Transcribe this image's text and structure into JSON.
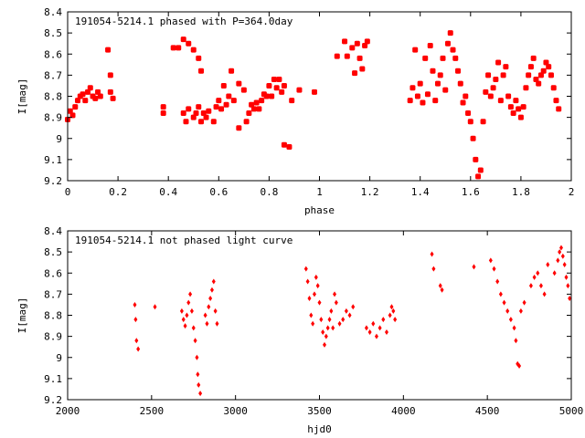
{
  "chart_data": [
    {
      "type": "scatter",
      "title": "191054-5214.1 phased with P=364.0day",
      "xlabel": "phase",
      "ylabel": "I[mag]",
      "xlim": [
        0,
        2
      ],
      "ylim": [
        9.2,
        8.4
      ],
      "y_inverted": true,
      "x_ticks": [
        "0",
        "0.2",
        "0.4",
        "0.6",
        "0.8",
        "1",
        "1.2",
        "1.4",
        "1.6",
        "1.8",
        "2"
      ],
      "y_ticks": [
        "8.4",
        "8.5",
        "8.6",
        "8.7",
        "8.8",
        "8.9",
        "9",
        "9.1",
        "9.2"
      ],
      "marker": "filled-star",
      "color": "#ff0000",
      "grid": false,
      "points": [
        [
          0.0,
          8.91
        ],
        [
          0.01,
          8.87
        ],
        [
          0.02,
          8.89
        ],
        [
          0.03,
          8.85
        ],
        [
          0.04,
          8.82
        ],
        [
          0.05,
          8.8
        ],
        [
          0.06,
          8.79
        ],
        [
          0.07,
          8.82
        ],
        [
          0.08,
          8.78
        ],
        [
          0.09,
          8.76
        ],
        [
          0.1,
          8.8
        ],
        [
          0.11,
          8.81
        ],
        [
          0.12,
          8.78
        ],
        [
          0.13,
          8.8
        ],
        [
          0.16,
          8.58
        ],
        [
          0.17,
          8.7
        ],
        [
          0.17,
          8.78
        ],
        [
          0.18,
          8.81
        ],
        [
          0.38,
          8.88
        ],
        [
          0.38,
          8.85
        ],
        [
          0.42,
          8.57
        ],
        [
          0.44,
          8.57
        ],
        [
          0.46,
          8.53
        ],
        [
          0.46,
          8.88
        ],
        [
          0.47,
          8.92
        ],
        [
          0.48,
          8.55
        ],
        [
          0.48,
          8.86
        ],
        [
          0.5,
          8.58
        ],
        [
          0.5,
          8.9
        ],
        [
          0.51,
          8.88
        ],
        [
          0.52,
          8.62
        ],
        [
          0.52,
          8.85
        ],
        [
          0.53,
          8.68
        ],
        [
          0.53,
          8.92
        ],
        [
          0.54,
          8.88
        ],
        [
          0.55,
          8.9
        ],
        [
          0.56,
          8.87
        ],
        [
          0.58,
          8.92
        ],
        [
          0.59,
          8.85
        ],
        [
          0.6,
          8.82
        ],
        [
          0.61,
          8.86
        ],
        [
          0.62,
          8.75
        ],
        [
          0.63,
          8.84
        ],
        [
          0.64,
          8.8
        ],
        [
          0.65,
          8.68
        ],
        [
          0.66,
          8.82
        ],
        [
          0.68,
          8.74
        ],
        [
          0.68,
          8.95
        ],
        [
          0.7,
          8.77
        ],
        [
          0.71,
          8.92
        ],
        [
          0.72,
          8.88
        ],
        [
          0.73,
          8.84
        ],
        [
          0.74,
          8.86
        ],
        [
          0.75,
          8.83
        ],
        [
          0.76,
          8.86
        ],
        [
          0.77,
          8.82
        ],
        [
          0.78,
          8.79
        ],
        [
          0.79,
          8.8
        ],
        [
          0.8,
          8.75
        ],
        [
          0.81,
          8.8
        ],
        [
          0.82,
          8.72
        ],
        [
          0.83,
          8.76
        ],
        [
          0.84,
          8.72
        ],
        [
          0.85,
          8.78
        ],
        [
          0.86,
          8.75
        ],
        [
          0.86,
          9.03
        ],
        [
          0.88,
          9.04
        ],
        [
          0.89,
          8.82
        ],
        [
          0.92,
          8.77
        ],
        [
          0.98,
          8.78
        ],
        [
          1.07,
          8.61
        ],
        [
          1.1,
          8.54
        ],
        [
          1.11,
          8.61
        ],
        [
          1.13,
          8.57
        ],
        [
          1.14,
          8.69
        ],
        [
          1.15,
          8.55
        ],
        [
          1.16,
          8.62
        ],
        [
          1.17,
          8.67
        ],
        [
          1.18,
          8.56
        ],
        [
          1.19,
          8.54
        ],
        [
          1.36,
          8.82
        ],
        [
          1.37,
          8.76
        ],
        [
          1.38,
          8.58
        ],
        [
          1.39,
          8.8
        ],
        [
          1.4,
          8.74
        ],
        [
          1.41,
          8.83
        ],
        [
          1.42,
          8.62
        ],
        [
          1.43,
          8.79
        ],
        [
          1.44,
          8.56
        ],
        [
          1.45,
          8.68
        ],
        [
          1.46,
          8.82
        ],
        [
          1.47,
          8.74
        ],
        [
          1.48,
          8.7
        ],
        [
          1.49,
          8.62
        ],
        [
          1.5,
          8.77
        ],
        [
          1.51,
          8.55
        ],
        [
          1.52,
          8.5
        ],
        [
          1.53,
          8.58
        ],
        [
          1.54,
          8.62
        ],
        [
          1.55,
          8.68
        ],
        [
          1.56,
          8.74
        ],
        [
          1.57,
          8.83
        ],
        [
          1.58,
          8.8
        ],
        [
          1.59,
          8.88
        ],
        [
          1.6,
          8.92
        ],
        [
          1.61,
          9.0
        ],
        [
          1.62,
          9.1
        ],
        [
          1.63,
          9.18
        ],
        [
          1.64,
          9.15
        ],
        [
          1.65,
          8.92
        ],
        [
          1.66,
          8.78
        ],
        [
          1.67,
          8.7
        ],
        [
          1.68,
          8.8
        ],
        [
          1.69,
          8.76
        ],
        [
          1.7,
          8.72
        ],
        [
          1.71,
          8.64
        ],
        [
          1.72,
          8.82
        ],
        [
          1.73,
          8.7
        ],
        [
          1.74,
          8.66
        ],
        [
          1.75,
          8.8
        ],
        [
          1.76,
          8.85
        ],
        [
          1.77,
          8.88
        ],
        [
          1.78,
          8.82
        ],
        [
          1.79,
          8.86
        ],
        [
          1.8,
          8.9
        ],
        [
          1.81,
          8.85
        ],
        [
          1.82,
          8.76
        ],
        [
          1.83,
          8.7
        ],
        [
          1.84,
          8.66
        ],
        [
          1.85,
          8.62
        ],
        [
          1.86,
          8.72
        ],
        [
          1.87,
          8.74
        ],
        [
          1.88,
          8.7
        ],
        [
          1.89,
          8.68
        ],
        [
          1.9,
          8.64
        ],
        [
          1.91,
          8.66
        ],
        [
          1.92,
          8.7
        ],
        [
          1.93,
          8.76
        ],
        [
          1.94,
          8.82
        ],
        [
          1.95,
          8.86
        ]
      ]
    },
    {
      "type": "scatter",
      "title": "191054-5214.1 not phased light curve",
      "xlabel": "hjd0",
      "ylabel": "I[mag]",
      "xlim": [
        2000,
        5000
      ],
      "ylim": [
        9.2,
        8.4
      ],
      "y_inverted": true,
      "x_ticks": [
        "2000",
        "2500",
        "3000",
        "3500",
        "4000",
        "4500",
        "5000"
      ],
      "y_ticks": [
        "8.4",
        "8.5",
        "8.6",
        "8.7",
        "8.8",
        "8.9",
        "9",
        "9.1",
        "9.2"
      ],
      "marker": "filled-diamond",
      "color": "#ff0000",
      "grid": false,
      "points": [
        [
          2400,
          8.75
        ],
        [
          2405,
          8.82
        ],
        [
          2410,
          8.92
        ],
        [
          2420,
          8.96
        ],
        [
          2520,
          8.76
        ],
        [
          2680,
          8.78
        ],
        [
          2690,
          8.82
        ],
        [
          2700,
          8.85
        ],
        [
          2710,
          8.8
        ],
        [
          2720,
          8.74
        ],
        [
          2730,
          8.7
        ],
        [
          2740,
          8.78
        ],
        [
          2750,
          8.86
        ],
        [
          2760,
          8.92
        ],
        [
          2770,
          9.0
        ],
        [
          2775,
          9.08
        ],
        [
          2780,
          9.13
        ],
        [
          2790,
          9.17
        ],
        [
          2820,
          8.8
        ],
        [
          2830,
          8.84
        ],
        [
          2840,
          8.76
        ],
        [
          2850,
          8.72
        ],
        [
          2860,
          8.68
        ],
        [
          2870,
          8.64
        ],
        [
          2880,
          8.78
        ],
        [
          2890,
          8.84
        ],
        [
          3420,
          8.58
        ],
        [
          3430,
          8.64
        ],
        [
          3440,
          8.72
        ],
        [
          3450,
          8.8
        ],
        [
          3460,
          8.84
        ],
        [
          3470,
          8.7
        ],
        [
          3480,
          8.62
        ],
        [
          3490,
          8.66
        ],
        [
          3500,
          8.74
        ],
        [
          3510,
          8.82
        ],
        [
          3520,
          8.88
        ],
        [
          3530,
          8.94
        ],
        [
          3540,
          8.9
        ],
        [
          3550,
          8.86
        ],
        [
          3560,
          8.82
        ],
        [
          3570,
          8.78
        ],
        [
          3580,
          8.86
        ],
        [
          3590,
          8.7
        ],
        [
          3600,
          8.74
        ],
        [
          3620,
          8.84
        ],
        [
          3640,
          8.82
        ],
        [
          3660,
          8.78
        ],
        [
          3680,
          8.8
        ],
        [
          3700,
          8.76
        ],
        [
          3780,
          8.86
        ],
        [
          3800,
          8.88
        ],
        [
          3820,
          8.84
        ],
        [
          3840,
          8.9
        ],
        [
          3860,
          8.86
        ],
        [
          3880,
          8.82
        ],
        [
          3900,
          8.88
        ],
        [
          3920,
          8.8
        ],
        [
          3930,
          8.76
        ],
        [
          3940,
          8.78
        ],
        [
          3950,
          8.82
        ],
        [
          4170,
          8.51
        ],
        [
          4180,
          8.58
        ],
        [
          4220,
          8.66
        ],
        [
          4230,
          8.68
        ],
        [
          4420,
          8.57
        ],
        [
          4520,
          8.54
        ],
        [
          4540,
          8.58
        ],
        [
          4560,
          8.64
        ],
        [
          4580,
          8.7
        ],
        [
          4600,
          8.74
        ],
        [
          4620,
          8.78
        ],
        [
          4640,
          8.82
        ],
        [
          4660,
          8.86
        ],
        [
          4670,
          8.92
        ],
        [
          4680,
          9.03
        ],
        [
          4690,
          9.04
        ],
        [
          4700,
          8.78
        ],
        [
          4720,
          8.74
        ],
        [
          4760,
          8.66
        ],
        [
          4780,
          8.62
        ],
        [
          4800,
          8.6
        ],
        [
          4820,
          8.66
        ],
        [
          4840,
          8.7
        ],
        [
          4860,
          8.56
        ],
        [
          4900,
          8.6
        ],
        [
          4920,
          8.54
        ],
        [
          4930,
          8.5
        ],
        [
          4940,
          8.48
        ],
        [
          4950,
          8.52
        ],
        [
          4960,
          8.56
        ],
        [
          4970,
          8.62
        ],
        [
          4980,
          8.66
        ],
        [
          4990,
          8.72
        ]
      ]
    }
  ]
}
